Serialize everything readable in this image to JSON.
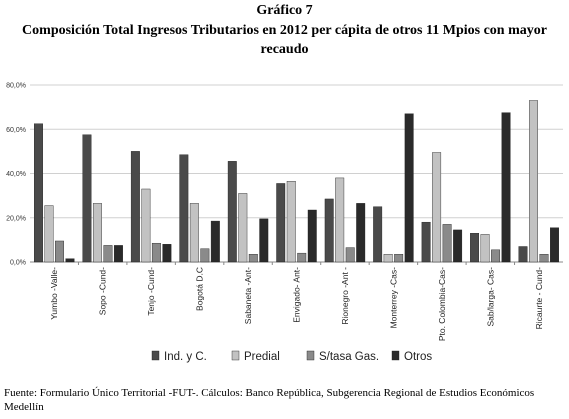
{
  "header": {
    "figure_label": "Gráfico 7",
    "title": "Composición Total Ingresos Tributarios en 2012 per cápita de otros 11 Mpios con mayor recaudo"
  },
  "footer": {
    "source": "Fuente: Formulario Único Territorial -FUT-. Cálculos: Banco República, Subgerencia Regional de Estudios Económicos Medellín"
  },
  "chart_data": {
    "type": "bar",
    "title": "Composición Total Ingresos Tributarios en 2012 per cápita de otros 11 Mpios con mayor recaudo",
    "xlabel": "",
    "ylabel": "",
    "ylim": [
      0,
      80
    ],
    "y_ticks": [
      "0,0%",
      "20,0%",
      "40,0%",
      "60,0%",
      "80,0%"
    ],
    "y_tick_values": [
      0,
      20,
      40,
      60,
      80
    ],
    "grid": true,
    "legend_position": "bottom",
    "categories": [
      "Yumbo -Valle-",
      "Sopo -Cund-",
      "Tenjo -Cund-",
      "Bogotá D.C",
      "Sabaneta -Ant-",
      "Envigado- Ant-",
      "Rionegro -Ant -",
      "Monterrey -Cas-",
      "Pto. Colombia-Cas-",
      "Sab/larga- Cas-",
      "Ricaurte - Cund-"
    ],
    "series": [
      {
        "name": "Ind. y C.",
        "color": "#4a4a4a",
        "values": [
          62.5,
          57.5,
          50,
          48.5,
          45.5,
          35.5,
          28.5,
          25,
          18,
          13,
          7
        ]
      },
      {
        "name": "Predial",
        "color": "#c2c2c2",
        "values": [
          25.5,
          26.5,
          33,
          26.5,
          31,
          36.5,
          38,
          3.5,
          49.5,
          12.5,
          73
        ]
      },
      {
        "name": "S/tasa Gas.",
        "color": "#8a8a8a",
        "values": [
          9.5,
          7.5,
          8.5,
          6,
          3.5,
          4,
          6.5,
          3.5,
          17,
          5.5,
          3.5
        ]
      },
      {
        "name": "Otros",
        "color": "#2a2a2a",
        "values": [
          1.5,
          7.5,
          8,
          18.5,
          19.5,
          23.5,
          26.5,
          67,
          14.5,
          67.5,
          15.5
        ]
      }
    ]
  }
}
